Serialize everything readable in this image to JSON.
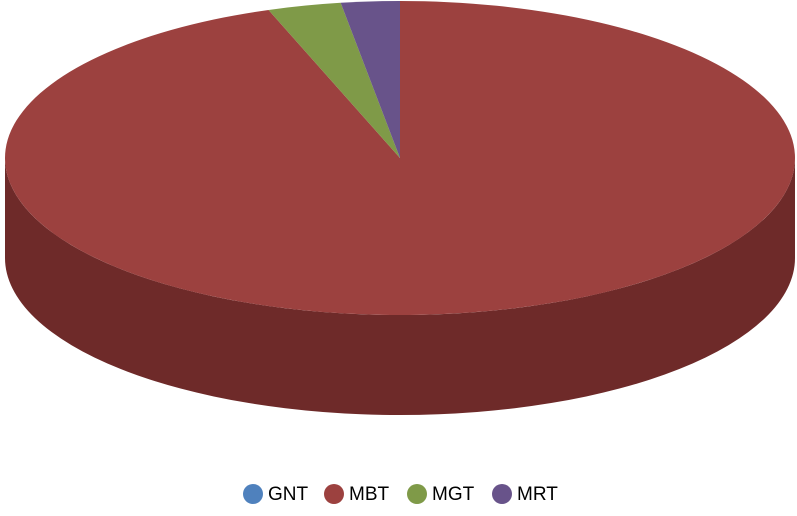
{
  "chart_data": {
    "type": "pie",
    "categories": [
      "GNT",
      "MBT",
      "MGT",
      "MRT"
    ],
    "values": [
      0,
      94.6,
      3,
      2.4
    ],
    "colors": [
      "#4f81bd",
      "#9c413f",
      "#7f9a48",
      "#68538a"
    ],
    "side_colors": [
      "#365a85",
      "#6e2a29",
      "#5a6d33",
      "#4a3b62"
    ],
    "legend": "bottom"
  }
}
